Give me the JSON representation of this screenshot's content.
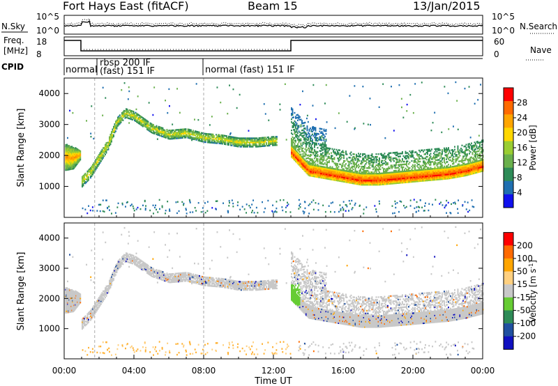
{
  "header": {
    "radar": "Fort Hays East (fitACF)",
    "beam": "Beam 15",
    "date": "13/Jan/2015"
  },
  "noise_panel": {
    "left_label": "N.Sky",
    "right_label": "N.Search",
    "y_ticks": [
      "10^5",
      "10^0"
    ]
  },
  "freq_panel": {
    "left_label_1": "Freq.",
    "left_label_2": "[MHz]",
    "right_label": "Nave",
    "left_ticks": [
      "18",
      "8"
    ],
    "right_ticks": [
      "60",
      "0"
    ]
  },
  "cpid": {
    "label": "CPID",
    "segments": [
      {
        "start_hour": 0.0,
        "lines": [
          "normal"
        ]
      },
      {
        "start_hour": 1.75,
        "lines": [
          "rbsp 200 IF",
          "(fast) 151 IF"
        ]
      },
      {
        "start_hour": 8.0,
        "lines": [
          "normal (fast) 151 IF"
        ]
      }
    ]
  },
  "chart_data": [
    {
      "type": "heatmap",
      "title": "",
      "ylabel": "Slant Range [km]",
      "xlabel": "",
      "x_range_hours": [
        0,
        24
      ],
      "ylim": [
        0,
        4500
      ],
      "y_ticks": [
        1000,
        2000,
        3000,
        4000
      ],
      "colorbar": {
        "label": "Power [dB]",
        "range": [
          0,
          32
        ],
        "ticks": [
          "4",
          "8",
          "12",
          "16",
          "20",
          "24",
          "28"
        ],
        "colors": [
          "#1010ee",
          "#1f6fb0",
          "#2e8b57",
          "#6ab04c",
          "#9acd32",
          "#ffd700",
          "#ffa500",
          "#ff6a00",
          "#ff0000"
        ]
      },
      "echo_bands": [
        {
          "name": "pre-sunrise",
          "x": [
            0.0,
            0.5,
            0.9
          ],
          "y_low": [
            1550,
            1600,
            1900
          ],
          "y_high": [
            2400,
            2300,
            2200
          ]
        },
        {
          "name": "main",
          "x": [
            1.0,
            1.5,
            2.5,
            3.0,
            3.5,
            4.0,
            5.0,
            6.0,
            7.0,
            8.0,
            9.0,
            10.0,
            11.0,
            12.0
          ],
          "y_center": [
            1200,
            1500,
            2400,
            3100,
            3400,
            3300,
            2900,
            2700,
            2750,
            2600,
            2550,
            2450,
            2450,
            2500
          ]
        },
        {
          "name": "evening",
          "x": [
            13.0,
            14.0,
            15.0,
            16.0,
            17.0,
            18.0,
            19.0,
            20.0,
            21.0,
            22.0,
            23.0,
            24.0
          ],
          "y_center": [
            2100,
            1500,
            1400,
            1300,
            1200,
            1200,
            1250,
            1300,
            1350,
            1400,
            1500,
            1650
          ]
        }
      ]
    },
    {
      "type": "heatmap",
      "title": "",
      "ylabel": "Slant Range [km]",
      "xlabel": "Time UT",
      "x_range_hours": [
        0,
        24
      ],
      "x_ticks": [
        "00:00",
        "04:00",
        "08:00",
        "12:00",
        "16:00",
        "20:00",
        "00:00"
      ],
      "ylim": [
        0,
        4500
      ],
      "y_ticks": [
        1000,
        2000,
        3000,
        4000
      ],
      "colorbar": {
        "label": "Velocity [m s^-1]",
        "range": [
          -250,
          250
        ],
        "ticks": [
          "200",
          "100",
          "50",
          "15",
          "-15",
          "-50",
          "-100",
          "-200"
        ],
        "colors": [
          "#1010c0",
          "#2050a0",
          "#2e8b57",
          "#66cc33",
          "#c8c8c8",
          "#ffd080",
          "#ffa500",
          "#ff6a00",
          "#ff0000"
        ]
      }
    }
  ]
}
